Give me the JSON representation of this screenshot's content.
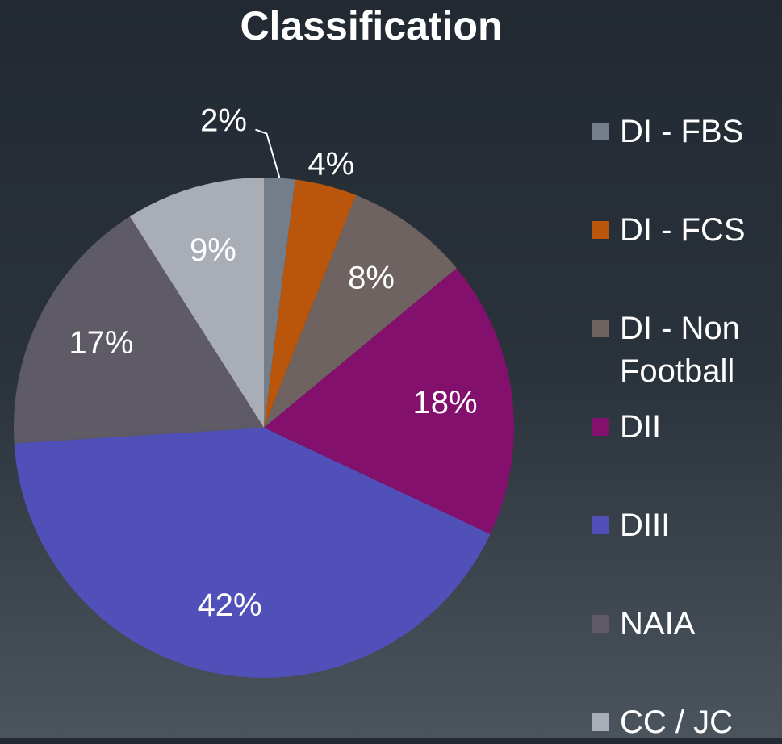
{
  "chart_data": {
    "type": "pie",
    "title": "Classification",
    "categories": [
      "DI - FBS",
      "DI - FCS",
      "DI - Non Football",
      "DII",
      "DIII",
      "NAIA",
      "CC / JC"
    ],
    "values": [
      2,
      4,
      8,
      18,
      42,
      17,
      9
    ],
    "value_labels": [
      "2%",
      "4%",
      "8%",
      "18%",
      "42%",
      "17%",
      "9%"
    ],
    "colors": [
      "#747e8a",
      "#b9560b",
      "#6e6360",
      "#82106c",
      "#5050b8",
      "#5e5a66",
      "#a9adb5"
    ],
    "legend": "right"
  }
}
